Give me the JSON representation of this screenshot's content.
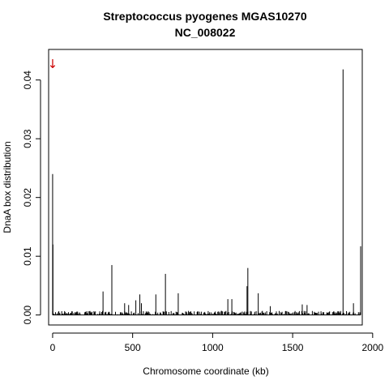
{
  "chart_data": {
    "type": "bar",
    "title": "Streptococcus pyogenes MGAS10270",
    "subtitle": "NC_008022",
    "xlabel": "Chromosome coordinate (kb)",
    "ylabel": "DnaA box distribution",
    "xlim": [
      -25,
      1935
    ],
    "ylim": [
      -0.0017,
      0.0452
    ],
    "xticks": [
      0,
      500,
      1000,
      1500,
      2000
    ],
    "yticks": [
      0.0,
      0.01,
      0.02,
      0.03,
      0.04
    ],
    "ytick_labels": [
      "0.00",
      "0.01",
      "0.02",
      "0.03",
      "0.04"
    ],
    "series_color": "#000000",
    "marker": {
      "x": 0,
      "label": "↓",
      "color": "#cc0000"
    },
    "x": [
      0,
      2,
      315,
      370,
      450,
      475,
      520,
      545,
      555,
      645,
      705,
      785,
      1095,
      1120,
      1215,
      1220,
      1285,
      1360,
      1560,
      1590,
      1815,
      1880,
      1925
    ],
    "values": [
      0.024,
      0.012,
      0.004,
      0.0085,
      0.002,
      0.0017,
      0.0025,
      0.0035,
      0.002,
      0.0035,
      0.007,
      0.0037,
      0.0027,
      0.0027,
      0.0049,
      0.008,
      0.0037,
      0.0015,
      0.0018,
      0.0017,
      0.0418,
      0.002,
      0.0117
    ]
  }
}
